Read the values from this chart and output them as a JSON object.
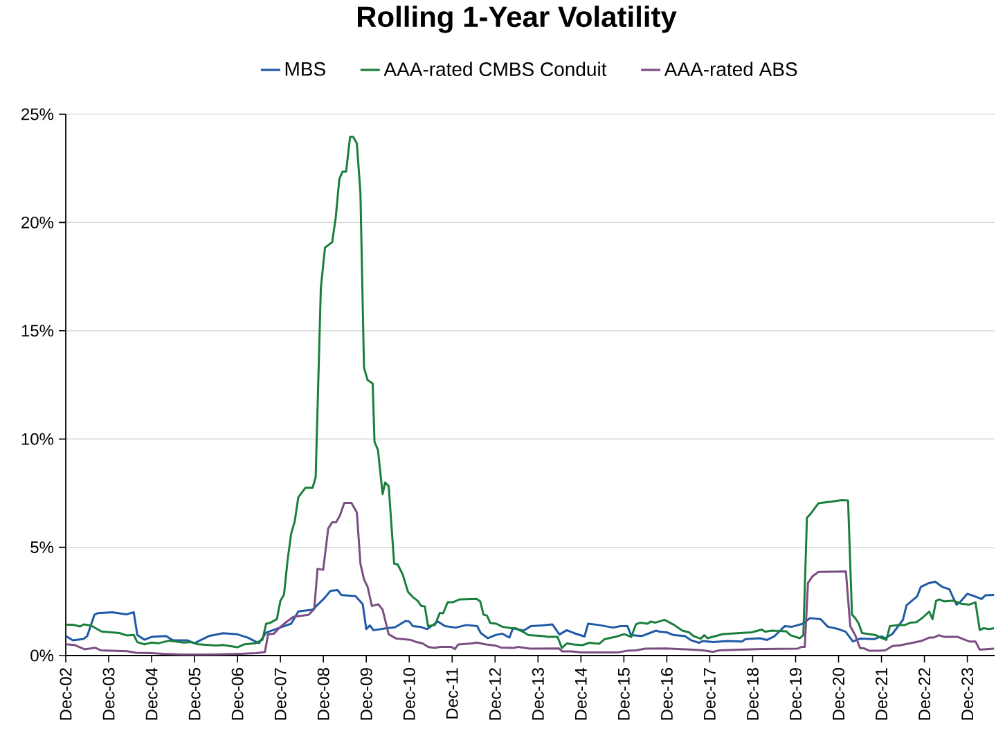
{
  "chart_data": {
    "type": "line",
    "title": "Rolling 1-Year Volatility",
    "xlim": [
      "2002-12-01",
      "2024-07-20"
    ],
    "ylim": [
      0,
      25
    ],
    "xticks": [
      {
        "value": "2002-12-01",
        "label": "Dec-02"
      },
      {
        "value": "2003-12-01",
        "label": "Dec-03"
      },
      {
        "value": "2004-12-01",
        "label": "Dec-04"
      },
      {
        "value": "2005-12-01",
        "label": "Dec-05"
      },
      {
        "value": "2006-12-01",
        "label": "Dec-06"
      },
      {
        "value": "2007-12-01",
        "label": "Dec-07"
      },
      {
        "value": "2008-12-01",
        "label": "Dec-08"
      },
      {
        "value": "2009-12-01",
        "label": "Dec-09"
      },
      {
        "value": "2010-12-01",
        "label": "Dec-10"
      },
      {
        "value": "2011-12-01",
        "label": "Dec-11"
      },
      {
        "value": "2012-12-01",
        "label": "Dec-12"
      },
      {
        "value": "2013-12-01",
        "label": "Dec-13"
      },
      {
        "value": "2014-12-01",
        "label": "Dec-14"
      },
      {
        "value": "2015-12-01",
        "label": "Dec-15"
      },
      {
        "value": "2016-12-01",
        "label": "Dec-16"
      },
      {
        "value": "2017-12-01",
        "label": "Dec-17"
      },
      {
        "value": "2018-12-01",
        "label": "Dec-18"
      },
      {
        "value": "2019-12-01",
        "label": "Dec-19"
      },
      {
        "value": "2020-12-01",
        "label": "Dec-20"
      },
      {
        "value": "2021-12-01",
        "label": "Dec-21"
      },
      {
        "value": "2022-12-01",
        "label": "Dec-22"
      },
      {
        "value": "2023-12-01",
        "label": "Dec-23"
      }
    ],
    "yticks": [
      {
        "value": 0,
        "label": "0%"
      },
      {
        "value": 5,
        "label": "5%"
      },
      {
        "value": 10,
        "label": "10%"
      },
      {
        "value": 15,
        "label": "15%"
      },
      {
        "value": 20,
        "label": "20%"
      },
      {
        "value": 25,
        "label": "25%"
      }
    ],
    "grid": "y",
    "legend": "top",
    "line_style": "solid",
    "series": [
      {
        "name": "MBS",
        "color": "#1f5aa6",
        "x": [
          "2002-12-01",
          "2003-02-01",
          "2003-05-01",
          "2003-06-01",
          "2003-08-01",
          "2003-09-01",
          "2004-01-01",
          "2004-05-01",
          "2004-07-01",
          "2004-08-01",
          "2004-10-01",
          "2004-12-01",
          "2005-04-01",
          "2005-06-01",
          "2005-10-01",
          "2005-12-01",
          "2006-04-01",
          "2006-08-01",
          "2006-12-01",
          "2007-03-01",
          "2007-05-01",
          "2007-06-01",
          "2007-08-01",
          "2007-12-01",
          "2008-03-01",
          "2008-05-01",
          "2008-09-01",
          "2008-12-01",
          "2009-02-01",
          "2009-04-01",
          "2009-05-01",
          "2009-09-01",
          "2009-11-01",
          "2009-12-01",
          "2010-01-01",
          "2010-02-01",
          "2010-06-01",
          "2010-08-01",
          "2010-11-01",
          "2010-12-01",
          "2011-01-01",
          "2011-03-01",
          "2011-05-01",
          "2011-08-01",
          "2011-10-01",
          "2012-01-01",
          "2012-04-01",
          "2012-07-01",
          "2012-08-01",
          "2012-10-01",
          "2012-12-01",
          "2013-02-01",
          "2013-04-01",
          "2013-05-01",
          "2013-08-01",
          "2013-10-01",
          "2014-01-01",
          "2014-04-01",
          "2014-06-01",
          "2014-08-01",
          "2014-10-01",
          "2015-01-01",
          "2015-02-01",
          "2015-05-01",
          "2015-09-01",
          "2015-11-01",
          "2016-01-01",
          "2016-02-01",
          "2016-05-01",
          "2016-09-01",
          "2016-10-01",
          "2016-12-01",
          "2017-02-01",
          "2017-05-01",
          "2017-07-01",
          "2017-09-01",
          "2017-10-01",
          "2018-01-01",
          "2018-05-01",
          "2018-09-01",
          "2018-10-01",
          "2019-02-01",
          "2019-04-01",
          "2019-06-01",
          "2019-09-01",
          "2019-11-01",
          "2020-02-01",
          "2020-04-01",
          "2020-07-01",
          "2020-09-01",
          "2020-12-01",
          "2021-02-01",
          "2021-04-01",
          "2021-06-01",
          "2021-10-01",
          "2021-12-01",
          "2022-01-01",
          "2022-03-01",
          "2022-06-01",
          "2022-07-01",
          "2022-10-01",
          "2022-11-01",
          "2023-01-01",
          "2023-03-01",
          "2023-05-01",
          "2023-07-01",
          "2023-08-01",
          "2023-09-01",
          "2023-10-01",
          "2023-12-01",
          "2024-02-01",
          "2024-04-01",
          "2024-05-01",
          "2024-07-15"
        ],
        "values": [
          0.9,
          0.7,
          0.77,
          0.9,
          1.88,
          1.96,
          2.0,
          1.9,
          2.0,
          0.95,
          0.73,
          0.86,
          0.9,
          0.7,
          0.7,
          0.57,
          0.9,
          1.03,
          0.98,
          0.82,
          0.65,
          0.57,
          1.06,
          1.3,
          1.47,
          2.04,
          2.12,
          2.6,
          2.99,
          3.02,
          2.8,
          2.74,
          2.37,
          1.22,
          1.39,
          1.17,
          1.27,
          1.3,
          1.6,
          1.57,
          1.36,
          1.33,
          1.22,
          1.57,
          1.36,
          1.29,
          1.41,
          1.36,
          1.04,
          0.8,
          0.94,
          1.01,
          0.83,
          1.26,
          1.15,
          1.36,
          1.39,
          1.44,
          0.97,
          1.17,
          1.04,
          0.88,
          1.47,
          1.41,
          1.29,
          1.36,
          1.36,
          0.94,
          0.9,
          1.15,
          1.1,
          1.07,
          0.94,
          0.9,
          0.69,
          0.59,
          0.67,
          0.62,
          0.67,
          0.65,
          0.76,
          0.8,
          0.72,
          0.88,
          1.36,
          1.33,
          1.47,
          1.73,
          1.68,
          1.33,
          1.22,
          1.1,
          0.65,
          0.78,
          0.76,
          0.88,
          0.8,
          0.99,
          1.65,
          2.32,
          2.74,
          3.17,
          3.33,
          3.41,
          3.17,
          3.06,
          2.69,
          2.35,
          2.48,
          2.85,
          2.74,
          2.61,
          2.78,
          2.8
        ]
      },
      {
        "name": "AAA-rated CMBS Conduit",
        "color": "#1a7f3c",
        "x": [
          "2002-12-01",
          "2003-02-01",
          "2003-04-01",
          "2003-05-01",
          "2003-07-01",
          "2003-10-01",
          "2004-03-01",
          "2004-05-01",
          "2004-07-01",
          "2004-08-01",
          "2004-10-01",
          "2004-12-01",
          "2005-02-01",
          "2005-05-01",
          "2005-09-01",
          "2005-11-01",
          "2006-01-01",
          "2006-04-01",
          "2006-06-01",
          "2006-08-01",
          "2006-12-01",
          "2007-02-01",
          "2007-05-01",
          "2007-07-01",
          "2007-08-01",
          "2007-09-01",
          "2007-11-01",
          "2007-12-01",
          "2008-01-01",
          "2008-02-01",
          "2008-03-01",
          "2008-04-01",
          "2008-05-01",
          "2008-07-01",
          "2008-09-01",
          "2008-09-27",
          "2008-11-10",
          "2008-12-15",
          "2009-02-15",
          "2009-03-15",
          "2009-04-15",
          "2009-05-12",
          "2009-06-12",
          "2009-07-15",
          "2009-08-12",
          "2009-09-12",
          "2009-10-12",
          "2009-11-12",
          "2009-12-12",
          "2010-01-25",
          "2010-02-10",
          "2010-03-09",
          "2010-04-18",
          "2010-05-09",
          "2010-06-09",
          "2010-07-25",
          "2010-08-24",
          "2010-10-06",
          "2010-11-21",
          "2011-01-03",
          "2011-02-12",
          "2011-03-12",
          "2011-04-12",
          "2011-05-09",
          "2011-07-06",
          "2011-08-18",
          "2011-09-15",
          "2011-10-24",
          "2011-12-06",
          "2012-02-03",
          "2012-06-27",
          "2012-07-27",
          "2012-08-24",
          "2012-09-24",
          "2012-10-21",
          "2012-12-12",
          "2013-02-01",
          "2013-04-18",
          "2013-05-24",
          "2013-07-24",
          "2013-09-12",
          "2014-01-09",
          "2014-02-27",
          "2014-05-15",
          "2014-06-21",
          "2014-08-03",
          "2014-10-01",
          "2014-12-15",
          "2015-02-12",
          "2015-05-03",
          "2015-06-21",
          "2015-09-18",
          "2015-12-06",
          "2016-02-03",
          "2016-03-12",
          "2016-04-21",
          "2016-06-18",
          "2016-07-18",
          "2016-08-27",
          "2016-11-12",
          "2017-02-03",
          "2017-04-12",
          "2017-06-09",
          "2017-07-15",
          "2017-09-15",
          "2017-10-15",
          "2017-11-12",
          "2018-03-21",
          "2018-11-21",
          "2019-02-18",
          "2019-03-15",
          "2019-05-12",
          "2019-09-12",
          "2019-10-18",
          "2020-01-06",
          "2020-02-06",
          "2020-03-06",
          "2020-04-03",
          "2020-06-12",
          "2020-10-06",
          "2020-12-27",
          "2021-02-21",
          "2021-03-24",
          "2021-04-21",
          "2021-05-21",
          "2021-06-18",
          "2021-10-15",
          "2021-11-24",
          "2022-01-12",
          "2022-02-12",
          "2022-04-18",
          "2022-06-18",
          "2022-08-06",
          "2022-09-24",
          "2022-11-12",
          "2023-01-12",
          "2023-02-09",
          "2023-03-09",
          "2023-04-06",
          "2023-05-18",
          "2023-08-03",
          "2023-10-12",
          "2023-12-18",
          "2024-02-09",
          "2024-03-15",
          "2024-04-15",
          "2024-06-06",
          "2024-07-15"
        ],
        "values": [
          1.42,
          1.42,
          1.34,
          1.44,
          1.39,
          1.11,
          1.04,
          0.93,
          0.95,
          0.62,
          0.52,
          0.6,
          0.57,
          0.69,
          0.6,
          0.62,
          0.52,
          0.49,
          0.46,
          0.49,
          0.38,
          0.52,
          0.57,
          0.73,
          1.47,
          1.5,
          1.68,
          2.53,
          2.81,
          4.4,
          5.63,
          6.2,
          7.31,
          7.75,
          7.75,
          8.24,
          16.97,
          18.84,
          19.09,
          20.23,
          22.0,
          22.35,
          22.35,
          23.95,
          23.95,
          23.65,
          21.37,
          13.3,
          12.72,
          12.56,
          9.87,
          9.49,
          7.46,
          7.99,
          7.83,
          4.24,
          4.21,
          3.75,
          2.94,
          2.69,
          2.53,
          2.29,
          2.27,
          1.36,
          1.41,
          1.97,
          1.95,
          2.46,
          2.46,
          2.59,
          2.61,
          2.5,
          1.89,
          1.84,
          1.5,
          1.47,
          1.33,
          1.26,
          1.26,
          1.1,
          0.94,
          0.9,
          0.86,
          0.86,
          0.35,
          0.56,
          0.51,
          0.48,
          0.59,
          0.54,
          0.76,
          0.86,
          0.99,
          0.86,
          1.44,
          1.52,
          1.47,
          1.57,
          1.52,
          1.65,
          1.41,
          1.15,
          1.07,
          0.9,
          0.78,
          0.94,
          0.8,
          0.99,
          1.07,
          1.2,
          1.1,
          1.15,
          1.12,
          0.94,
          0.8,
          0.94,
          6.36,
          6.52,
          7.03,
          7.11,
          7.18,
          7.16,
          1.89,
          1.73,
          1.47,
          1.04,
          0.94,
          0.83,
          0.72,
          1.36,
          1.41,
          1.41,
          1.52,
          1.54,
          1.73,
          2.03,
          1.68,
          2.53,
          2.59,
          2.5,
          2.53,
          2.39,
          2.35,
          2.46,
          1.18,
          1.26,
          1.22,
          1.26
        ]
      },
      {
        "name": "AAA-rated ABS",
        "color": "#7a4e82",
        "x": [
          "2002-12-01",
          "2003-02-12",
          "2003-05-09",
          "2003-08-09",
          "2003-09-24",
          "2004-05-06",
          "2004-07-21",
          "2004-12-03",
          "2005-03-03",
          "2005-08-03",
          "2006-05-01",
          "2006-12-24",
          "2007-05-09",
          "2007-07-21",
          "2007-08-18",
          "2007-10-06",
          "2007-11-21",
          "2008-01-21",
          "2008-03-21",
          "2008-05-15",
          "2008-07-27",
          "2008-09-15",
          "2008-10-12",
          "2008-11-30",
          "2009-01-12",
          "2009-02-15",
          "2009-03-18",
          "2009-04-21",
          "2009-05-27",
          "2009-07-27",
          "2009-09-12",
          "2009-10-12",
          "2009-11-12",
          "2009-12-12",
          "2010-01-18",
          "2010-03-12",
          "2010-04-18",
          "2010-06-09",
          "2010-08-15",
          "2010-12-09",
          "2011-02-03",
          "2011-03-24",
          "2011-05-09",
          "2011-07-03",
          "2011-08-18",
          "2011-11-24",
          "2011-12-24",
          "2012-01-21",
          "2012-05-15",
          "2012-06-27",
          "2012-09-15",
          "2012-12-03",
          "2013-01-21",
          "2013-05-06",
          "2013-06-15",
          "2013-09-24",
          "2014-05-27",
          "2014-06-24",
          "2014-09-12",
          "2014-11-30",
          "2015-05-03",
          "2015-10-06",
          "2015-12-27",
          "2016-03-12",
          "2016-06-01",
          "2016-11-24",
          "2017-06-09",
          "2017-10-03",
          "2018-01-01",
          "2018-02-21",
          "2018-08-15",
          "2019-02-27",
          "2019-12-18",
          "2020-01-24",
          "2020-02-18",
          "2020-03-15",
          "2020-04-21",
          "2020-06-12",
          "2021-02-03",
          "2021-03-09",
          "2021-04-21",
          "2021-06-01",
          "2021-07-06",
          "2021-08-18",
          "2021-11-06",
          "2022-01-03",
          "2022-03-03",
          "2022-05-15",
          "2022-08-24",
          "2022-11-03",
          "2023-01-12",
          "2023-02-21",
          "2023-04-01",
          "2023-05-18",
          "2023-09-12",
          "2023-10-24",
          "2023-12-18",
          "2024-02-09",
          "2024-03-15",
          "2024-07-15"
        ],
        "values": [
          0.52,
          0.49,
          0.29,
          0.36,
          0.24,
          0.2,
          0.13,
          0.11,
          0.08,
          0.05,
          0.05,
          0.08,
          0.11,
          0.16,
          0.98,
          1.01,
          1.27,
          1.55,
          1.79,
          1.83,
          1.88,
          2.15,
          4.0,
          3.96,
          5.87,
          6.15,
          6.15,
          6.48,
          7.05,
          7.05,
          6.61,
          4.24,
          3.51,
          3.18,
          2.29,
          2.37,
          2.12,
          0.98,
          0.78,
          0.73,
          0.62,
          0.56,
          0.4,
          0.35,
          0.4,
          0.4,
          0.3,
          0.51,
          0.56,
          0.6,
          0.51,
          0.46,
          0.37,
          0.35,
          0.4,
          0.32,
          0.33,
          0.19,
          0.19,
          0.14,
          0.14,
          0.14,
          0.22,
          0.24,
          0.32,
          0.33,
          0.28,
          0.24,
          0.17,
          0.24,
          0.27,
          0.3,
          0.32,
          0.4,
          0.4,
          3.35,
          3.65,
          3.86,
          3.88,
          1.36,
          0.94,
          0.35,
          0.33,
          0.22,
          0.22,
          0.24,
          0.44,
          0.48,
          0.59,
          0.67,
          0.83,
          0.83,
          0.94,
          0.86,
          0.86,
          0.76,
          0.65,
          0.65,
          0.27,
          0.32
        ]
      }
    ]
  }
}
